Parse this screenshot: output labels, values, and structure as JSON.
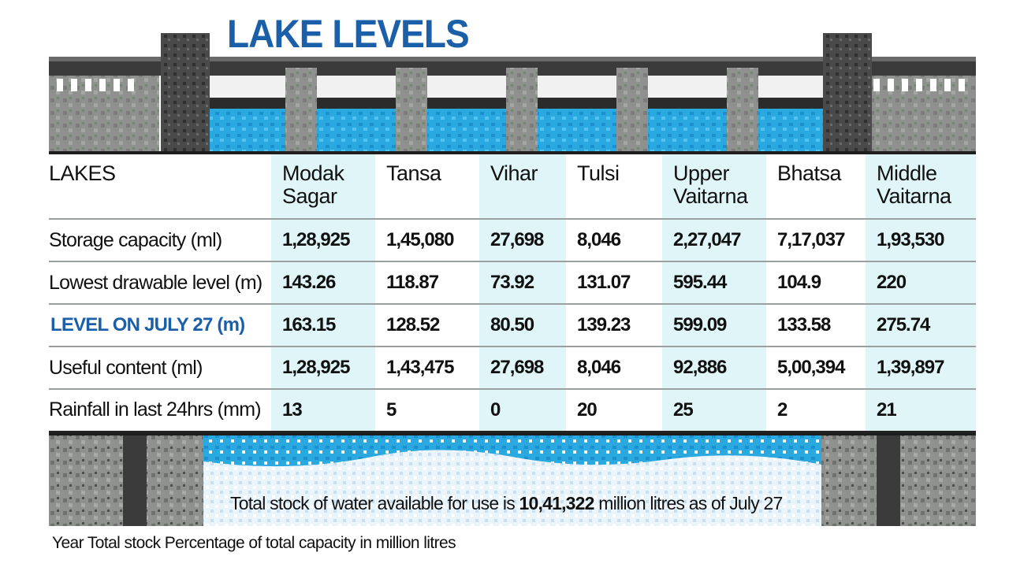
{
  "header": {
    "title": "LAKE LEVELS"
  },
  "chart_data": {
    "type": "table",
    "title": "LAKE LEVELS",
    "corner_header": "LAKES",
    "columns": [
      {
        "line1": "Modak",
        "line2": "Sagar",
        "full": "Modak Sagar"
      },
      {
        "line1": "Tansa",
        "line2": "",
        "full": "Tansa"
      },
      {
        "line1": "Vihar",
        "line2": "",
        "full": "Vihar"
      },
      {
        "line1": "Tulsi",
        "line2": "",
        "full": "Tulsi"
      },
      {
        "line1": "Upper",
        "line2": "Vaitarna",
        "full": "Upper Vaitarna"
      },
      {
        "line1": "Bhatsa",
        "line2": "",
        "full": "Bhatsa"
      },
      {
        "line1": "Middle",
        "line2": "Vaitarna",
        "full": "Middle Vaitarna"
      }
    ],
    "rows": [
      {
        "label": "Storage capacity (ml)",
        "values": [
          "1,28,925",
          "1,45,080",
          "27,698",
          "8,046",
          "2,27,047",
          "7,17,037",
          "1,93,530"
        ]
      },
      {
        "label": "Lowest drawable level (m)",
        "values": [
          "143.26",
          "118.87",
          "73.92",
          "131.07",
          "595.44",
          "104.9",
          "220"
        ]
      },
      {
        "label": "LEVEL ON JULY 27 (m)",
        "values": [
          "163.15",
          "128.52",
          "80.50",
          "139.23",
          "599.09",
          "133.58",
          "275.74"
        ]
      },
      {
        "label": "Useful content (ml)",
        "values": [
          "1,28,925",
          "1,43,475",
          "27,698",
          "8,046",
          "92,886",
          "5,00,394",
          "1,39,897"
        ]
      },
      {
        "label": "Rainfall in last 24hrs (mm)",
        "values": [
          "13",
          "5",
          "0",
          "20",
          "25",
          "2",
          "21"
        ]
      }
    ],
    "highlight_row_index": 2,
    "shaded_columns": [
      0,
      2,
      4,
      6
    ]
  },
  "summary": {
    "prefix": "Total stock of water available for use is ",
    "value": "10,41,322",
    "suffix": " million litres as of July 27"
  },
  "footer": {
    "text": "Year Total stock Percentage of total capacity in million litres"
  },
  "colors": {
    "title": "#1a5fa8",
    "accent_row": "#1a5fa8",
    "column_shade": "#dff5f7",
    "water": "#2aa8e0",
    "dam_stone": "#8f918f",
    "dam_dark": "#3b3b3b"
  }
}
